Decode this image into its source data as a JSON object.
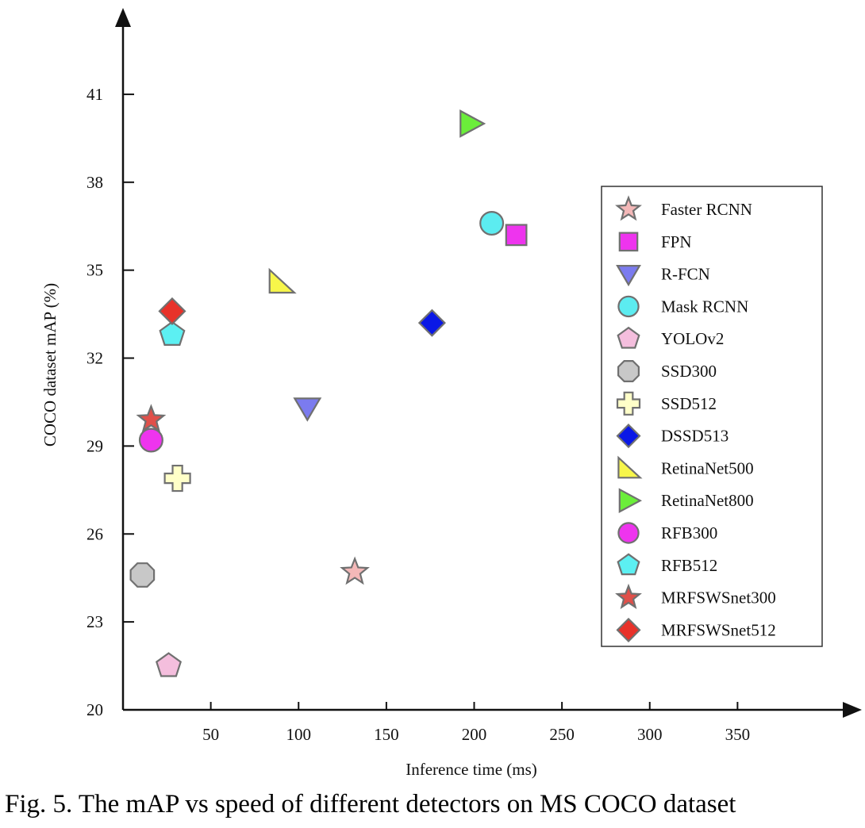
{
  "caption": "Fig. 5. The mAP vs speed of different detectors on MS COCO dataset",
  "chart_data": {
    "type": "scatter",
    "xlabel": "Inference time (ms)",
    "ylabel": "COCO dataset mAP (%)",
    "xlim": [
      0,
      400
    ],
    "ylim": [
      20,
      43
    ],
    "xticks": [
      50,
      100,
      150,
      200,
      250,
      300,
      350
    ],
    "yticks": [
      20,
      23,
      26,
      29,
      32,
      35,
      38,
      41
    ],
    "grid": false,
    "legend_position": "right",
    "series": [
      {
        "name": "Faster RCNN",
        "marker": "star",
        "color": "#f4b8b8",
        "x": [
          132
        ],
        "y": [
          24.7
        ]
      },
      {
        "name": "FPN",
        "marker": "square",
        "color": "#ee34ee",
        "x": [
          224
        ],
        "y": [
          36.2
        ]
      },
      {
        "name": "R-FCN",
        "marker": "triangle-down",
        "color": "#7b7bef",
        "x": [
          105
        ],
        "y": [
          30.3
        ]
      },
      {
        "name": "Mask RCNN",
        "marker": "circle",
        "color": "#5cecf0",
        "x": [
          210
        ],
        "y": [
          36.6
        ]
      },
      {
        "name": "YOLOv2",
        "marker": "pentagon",
        "color": "#f4bedd",
        "x": [
          26
        ],
        "y": [
          21.5
        ]
      },
      {
        "name": "SSD300",
        "marker": "octagon",
        "color": "#c8c8c8",
        "x": [
          11
        ],
        "y": [
          24.6
        ]
      },
      {
        "name": "SSD512",
        "marker": "plus",
        "color": "#ffffc8",
        "x": [
          31
        ],
        "y": [
          27.9
        ]
      },
      {
        "name": "DSSD513",
        "marker": "diamond",
        "color": "#0a18e6",
        "x": [
          176
        ],
        "y": [
          33.2
        ]
      },
      {
        "name": "RetinaNet500",
        "marker": "triangle-corner",
        "color": "#f7f64a",
        "x": [
          90
        ],
        "y": [
          34.6
        ]
      },
      {
        "name": "RetinaNet800",
        "marker": "triangle-right",
        "color": "#6bee3a",
        "x": [
          198
        ],
        "y": [
          40.0
        ]
      },
      {
        "name": "RFB300",
        "marker": "circle",
        "color": "#ee34ee",
        "x": [
          16
        ],
        "y": [
          29.2
        ]
      },
      {
        "name": "RFB512",
        "marker": "pentagon",
        "color": "#5cf0f2",
        "x": [
          28
        ],
        "y": [
          32.8
        ]
      },
      {
        "name": "MRFSWSnet300",
        "marker": "star",
        "color": "#e0504a",
        "x": [
          16
        ],
        "y": [
          29.9
        ]
      },
      {
        "name": "MRFSWSnet512",
        "marker": "diamond",
        "color": "#e8322a",
        "x": [
          28
        ],
        "y": [
          33.6
        ]
      }
    ]
  }
}
